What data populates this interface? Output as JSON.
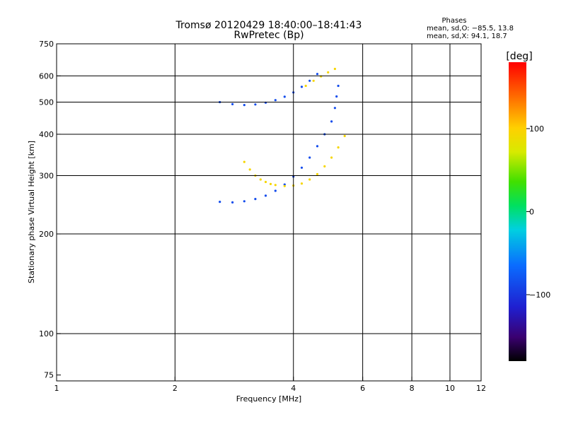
{
  "chart_data": {
    "type": "scatter",
    "title": "Tromsø 20120429 18:40:00–18:41:43",
    "subtitle": "RwPretec (Bp)",
    "xlabel": "Frequency [MHz]",
    "ylabel": "Stationary phase Virtual Height [km]",
    "x_scale": "log",
    "y_scale": "log",
    "xlim": [
      1,
      12
    ],
    "ylim": [
      72,
      750
    ],
    "x_ticks": [
      1,
      2,
      4,
      6,
      8,
      10,
      12
    ],
    "y_ticks": [
      75,
      100,
      200,
      300,
      400,
      500,
      600,
      750
    ],
    "x_gridlines": [
      2,
      4,
      6,
      8,
      10
    ],
    "y_gridlines": [
      100,
      200,
      300,
      400,
      500,
      600
    ],
    "grid": true,
    "phases_box": {
      "title": "Phases",
      "line1": "mean, sd,O: −85.5, 13.8",
      "line2": "mean, sd,X:  94.1, 18.7"
    },
    "colorbar": {
      "label": "[deg]",
      "range": [
        -180,
        180
      ],
      "ticks": [
        100,
        0,
        -100
      ],
      "tick_labels": [
        "100",
        "0",
        "−100"
      ]
    },
    "series": [
      {
        "name": "O",
        "color_phase": -85.5,
        "points": [
          [
            2.6,
            250
          ],
          [
            2.8,
            249
          ],
          [
            3.0,
            251
          ],
          [
            3.2,
            255
          ],
          [
            3.4,
            261
          ],
          [
            3.6,
            270
          ],
          [
            3.8,
            282
          ],
          [
            4.0,
            298
          ],
          [
            4.2,
            317
          ],
          [
            4.4,
            340
          ],
          [
            4.6,
            368
          ],
          [
            4.8,
            400
          ],
          [
            5.0,
            437
          ],
          [
            5.1,
            480
          ],
          [
            5.15,
            520
          ],
          [
            5.2,
            560
          ],
          [
            2.6,
            500
          ],
          [
            2.8,
            493
          ],
          [
            3.0,
            490
          ],
          [
            3.2,
            492
          ],
          [
            3.4,
            498
          ],
          [
            3.6,
            507
          ],
          [
            3.8,
            519
          ],
          [
            4.0,
            535
          ],
          [
            4.2,
            556
          ],
          [
            4.4,
            580
          ],
          [
            4.6,
            608
          ]
        ]
      },
      {
        "name": "X",
        "color_phase": 94.1,
        "points": [
          [
            3.0,
            330
          ],
          [
            3.1,
            313
          ],
          [
            3.2,
            300
          ],
          [
            3.3,
            292
          ],
          [
            3.4,
            287
          ],
          [
            3.5,
            283
          ],
          [
            3.6,
            281
          ],
          [
            3.8,
            279
          ],
          [
            4.0,
            280
          ],
          [
            4.2,
            284
          ],
          [
            4.4,
            292
          ],
          [
            4.6,
            303
          ],
          [
            4.8,
            320
          ],
          [
            5.0,
            340
          ],
          [
            5.2,
            365
          ],
          [
            5.4,
            395
          ],
          [
            4.3,
            560
          ],
          [
            4.5,
            580
          ],
          [
            4.7,
            598
          ],
          [
            4.9,
            615
          ],
          [
            5.1,
            630
          ]
        ]
      }
    ]
  }
}
